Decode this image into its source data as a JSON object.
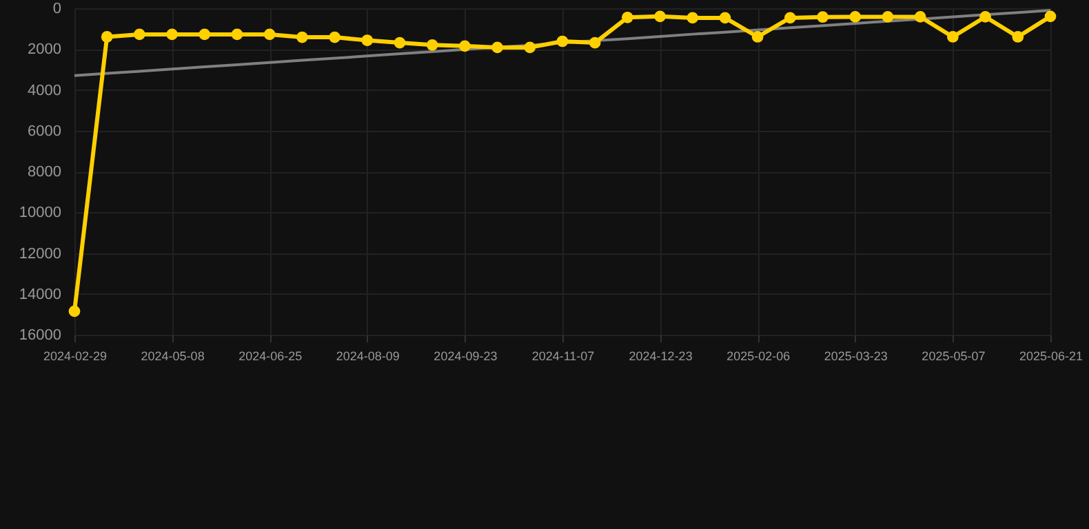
{
  "chart_data": {
    "type": "line",
    "categories": [
      "2024-02-29",
      null,
      null,
      "2024-05-08",
      null,
      null,
      "2024-06-25",
      null,
      null,
      "2024-08-09",
      null,
      null,
      "2024-09-23",
      null,
      null,
      "2024-11-07",
      null,
      null,
      "2024-12-23",
      null,
      null,
      "2025-02-06",
      null,
      null,
      "2025-03-23",
      null,
      null,
      "2025-05-07",
      null,
      null,
      "2025-06-21"
    ],
    "series": [
      {
        "color": "#ffd000",
        "marker": "circle",
        "values": [
          14850,
          1400,
          1280,
          1280,
          1280,
          1280,
          1280,
          1420,
          1420,
          1570,
          1690,
          1800,
          1850,
          1920,
          1920,
          1620,
          1690,
          450,
          400,
          470,
          470,
          1400,
          470,
          430,
          420,
          420,
          420,
          1400,
          420,
          1400,
          400
        ]
      },
      {
        "type": "line",
        "color": "#808080",
        "marker": "none",
        "values": [
          3300,
          3190,
          3090,
          2980,
          2870,
          2770,
          2660,
          2550,
          2450,
          2340,
          2230,
          2130,
          2020,
          1910,
          1810,
          1700,
          1590,
          1490,
          1380,
          1270,
          1170,
          1060,
          950,
          850,
          740,
          630,
          530,
          420,
          310,
          210,
          100
        ]
      }
    ],
    "ylim": [
      16000,
      0
    ],
    "yticks": [
      0,
      2000,
      4000,
      6000,
      8000,
      10000,
      12000,
      14000,
      16000
    ],
    "grid": true
  }
}
